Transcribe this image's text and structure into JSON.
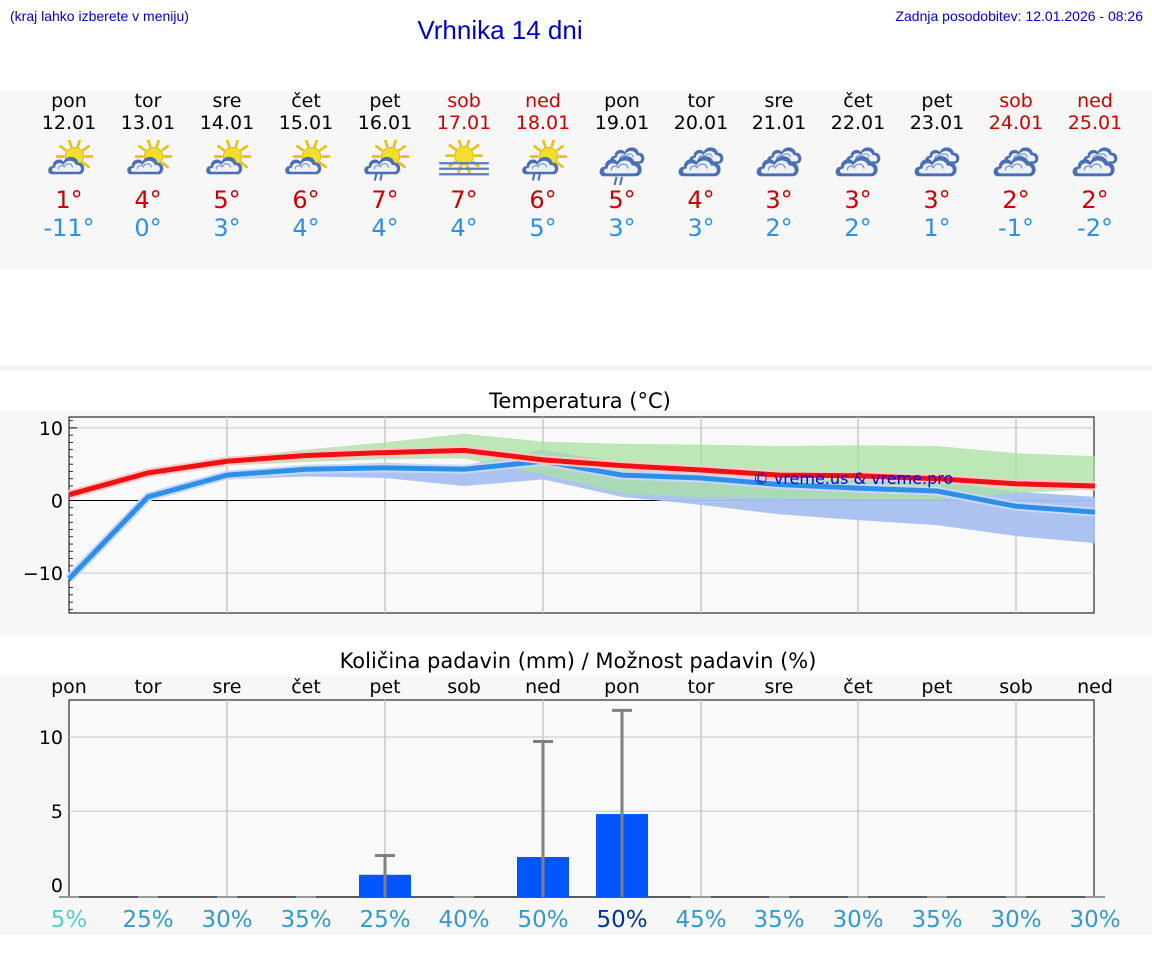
{
  "header": {
    "hint": "(kraj lahko izberete v meniju)",
    "title": "Vrhnika 14 dni",
    "updated": "Zadnja posodobitev: 12.01.2026 - 08:26"
  },
  "days": [
    {
      "name": "pon",
      "date": "12.01",
      "weekend": false,
      "icon": "partly-cloudy-icon",
      "tmax": "1°",
      "tmin": "-11°"
    },
    {
      "name": "tor",
      "date": "13.01",
      "weekend": false,
      "icon": "partly-cloudy-icon",
      "tmax": "4°",
      "tmin": "0°"
    },
    {
      "name": "sre",
      "date": "14.01",
      "weekend": false,
      "icon": "partly-cloudy-icon",
      "tmax": "5°",
      "tmin": "3°"
    },
    {
      "name": "čet",
      "date": "15.01",
      "weekend": false,
      "icon": "partly-cloudy-icon",
      "tmax": "6°",
      "tmin": "4°"
    },
    {
      "name": "pet",
      "date": "16.01",
      "weekend": false,
      "icon": "partly-cloudy-rain-icon",
      "tmax": "7°",
      "tmin": "4°"
    },
    {
      "name": "sob",
      "date": "17.01",
      "weekend": true,
      "icon": "sun-fog-icon",
      "tmax": "7°",
      "tmin": "4°"
    },
    {
      "name": "ned",
      "date": "18.01",
      "weekend": true,
      "icon": "partly-cloudy-rain-icon",
      "tmax": "6°",
      "tmin": "5°"
    },
    {
      "name": "pon",
      "date": "19.01",
      "weekend": false,
      "icon": "cloudy-rain-icon",
      "tmax": "5°",
      "tmin": "3°"
    },
    {
      "name": "tor",
      "date": "20.01",
      "weekend": false,
      "icon": "cloudy-icon",
      "tmax": "4°",
      "tmin": "3°"
    },
    {
      "name": "sre",
      "date": "21.01",
      "weekend": false,
      "icon": "cloudy-icon",
      "tmax": "3°",
      "tmin": "2°"
    },
    {
      "name": "čet",
      "date": "22.01",
      "weekend": false,
      "icon": "cloudy-icon",
      "tmax": "3°",
      "tmin": "2°"
    },
    {
      "name": "pet",
      "date": "23.01",
      "weekend": false,
      "icon": "cloudy-icon",
      "tmax": "3°",
      "tmin": "1°"
    },
    {
      "name": "sob",
      "date": "24.01",
      "weekend": true,
      "icon": "cloudy-icon",
      "tmax": "2°",
      "tmin": "-1°"
    },
    {
      "name": "ned",
      "date": "25.01",
      "weekend": true,
      "icon": "cloudy-icon",
      "tmax": "2°",
      "tmin": "-2°"
    }
  ],
  "colors": {
    "max_line": "#ee1111",
    "min_line": "#2e8fe8",
    "max_band": "#a8e0a0",
    "min_band": "#a8c0f0",
    "overlap_band": "#7cc0a0",
    "bar": "#0055ff",
    "whisker": "#808080",
    "weekend": "#cc0000",
    "title": "#0000cc"
  },
  "chart_data": [
    {
      "type": "line",
      "title": "Temperatura (°C)",
      "watermark": "© vreme.us & vreme.pro",
      "ylim": [
        -15.5,
        11.5
      ],
      "yticks": [
        "10",
        "0",
        "−10"
      ],
      "ytick_values": [
        10,
        0,
        -10
      ],
      "x": [
        0,
        1,
        2,
        3,
        4,
        5,
        6,
        7,
        8,
        9,
        10,
        11,
        12,
        13
      ],
      "series": [
        {
          "name": "max",
          "values": [
            0.8,
            3.8,
            5.4,
            6.2,
            6.6,
            6.9,
            5.6,
            4.8,
            4.2,
            3.5,
            3.4,
            3.0,
            2.3,
            2.0
          ],
          "band_low": [
            0.5,
            3.3,
            4.8,
            5.3,
            5.7,
            5.8,
            3.6,
            1.0,
            0.4,
            0.3,
            0.2,
            0.2,
            1.0,
            1.6
          ],
          "band_high": [
            1.3,
            4.2,
            5.8,
            7.0,
            8.0,
            9.2,
            8.1,
            7.8,
            7.7,
            7.5,
            7.6,
            7.5,
            6.5,
            6.1
          ]
        },
        {
          "name": "min",
          "values": [
            -10.8,
            0.5,
            3.5,
            4.3,
            4.5,
            4.3,
            5.4,
            3.5,
            3.1,
            2.2,
            1.7,
            1.3,
            -0.8,
            -1.6
          ],
          "band_low": [
            -11.0,
            0.0,
            2.9,
            3.3,
            3.1,
            2.0,
            2.9,
            0.5,
            -0.6,
            -1.9,
            -2.7,
            -3.4,
            -4.9,
            -5.9
          ],
          "band_high": [
            -10.5,
            0.8,
            3.9,
            4.8,
            5.2,
            4.8,
            7.0,
            5.2,
            4.5,
            3.6,
            3.2,
            2.8,
            1.2,
            0.5
          ]
        }
      ]
    },
    {
      "type": "bar",
      "title": "Količina padavin (mm) / Možnost padavin (%)",
      "categories": [
        "pon",
        "tor",
        "sre",
        "čet",
        "pet",
        "sob",
        "ned",
        "pon",
        "tor",
        "sre",
        "čet",
        "pet",
        "sob",
        "ned"
      ],
      "ylim": [
        -0.8,
        12.5
      ],
      "yticks": [
        "10",
        "5",
        "0"
      ],
      "ytick_values": [
        10,
        5,
        0
      ],
      "values": [
        0,
        0,
        0,
        0,
        0.7,
        0,
        1.9,
        4.8,
        0,
        0,
        0,
        0,
        0,
        0
      ],
      "whisker_max": [
        0,
        0,
        0,
        0,
        2.0,
        0,
        9.7,
        11.8,
        0,
        0,
        0,
        0,
        0,
        0
      ],
      "probability": [
        "5%",
        "25%",
        "30%",
        "35%",
        "25%",
        "40%",
        "50%",
        "50%",
        "45%",
        "35%",
        "30%",
        "35%",
        "30%",
        "30%"
      ],
      "probability_colors": [
        "#55ccdd",
        "#3399cc",
        "#3399cc",
        "#3399cc",
        "#3399cc",
        "#3399cc",
        "#3399cc",
        "#003399",
        "#3399cc",
        "#3399cc",
        "#3399cc",
        "#3399cc",
        "#3399cc",
        "#3399cc"
      ]
    }
  ]
}
